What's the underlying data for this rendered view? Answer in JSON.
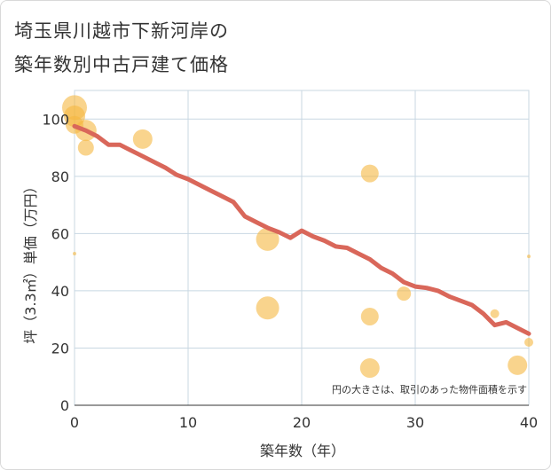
{
  "chart_data": {
    "type": "scatter",
    "title_lines": [
      "埼玉県川越市下新河岸の",
      "築年数別中古戸建て価格"
    ],
    "xlabel": "築年数（年）",
    "ylabel": "坪（3.3㎡）単価（万円）",
    "xlim": [
      0,
      40
    ],
    "ylim": [
      0,
      110
    ],
    "xticks": [
      0,
      10,
      20,
      30,
      40
    ],
    "yticks": [
      0,
      20,
      40,
      60,
      80,
      100
    ],
    "note": "円の大きさは、取引のあった物件面積を示す",
    "colors": {
      "bubble": "#f5b841",
      "trend": "#d9675a",
      "grid": "#c8d7e2"
    },
    "bubbles": [
      {
        "x": 0,
        "y": 104,
        "size": 14
      },
      {
        "x": 0,
        "y": 101,
        "size": 12
      },
      {
        "x": 0,
        "y": 98,
        "size": 10
      },
      {
        "x": 1,
        "y": 96,
        "size": 12
      },
      {
        "x": 1,
        "y": 90,
        "size": 9
      },
      {
        "x": 0,
        "y": 53,
        "size": 2
      },
      {
        "x": 6,
        "y": 93,
        "size": 11
      },
      {
        "x": 17,
        "y": 58,
        "size": 13
      },
      {
        "x": 17,
        "y": 34,
        "size": 13
      },
      {
        "x": 26,
        "y": 81,
        "size": 10
      },
      {
        "x": 26,
        "y": 31,
        "size": 10
      },
      {
        "x": 26,
        "y": 13,
        "size": 11
      },
      {
        "x": 29,
        "y": 39,
        "size": 8
      },
      {
        "x": 37,
        "y": 32,
        "size": 5
      },
      {
        "x": 39,
        "y": 14,
        "size": 11
      },
      {
        "x": 40,
        "y": 22,
        "size": 5
      },
      {
        "x": 40,
        "y": 52,
        "size": 2
      }
    ],
    "trend": {
      "name": "平均",
      "x": [
        0,
        1,
        2,
        3,
        4,
        5,
        6,
        7,
        8,
        9,
        10,
        11,
        12,
        13,
        14,
        15,
        16,
        17,
        18,
        19,
        20,
        21,
        22,
        23,
        24,
        25,
        26,
        27,
        28,
        29,
        30,
        31,
        32,
        33,
        34,
        35,
        36,
        37,
        38,
        39,
        40
      ],
      "y": [
        97.5,
        96,
        94,
        91,
        91,
        89,
        87,
        85,
        83,
        80.5,
        79,
        77,
        75,
        73,
        71,
        66,
        64,
        62,
        60.5,
        58.5,
        61,
        59,
        57.5,
        55.5,
        55,
        53,
        51,
        48,
        46,
        43,
        41.5,
        41,
        40,
        38,
        36.5,
        35,
        32,
        28,
        29,
        27,
        25
      ]
    }
  }
}
